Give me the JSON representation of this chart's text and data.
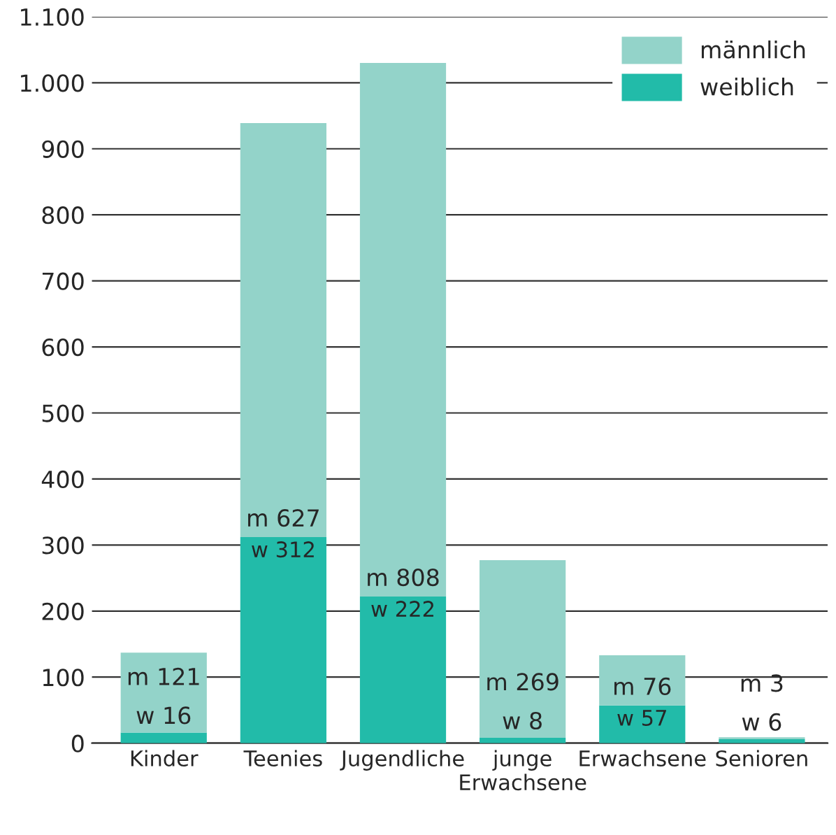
{
  "chart_data": {
    "type": "bar",
    "stacked": true,
    "categories": [
      "Kinder",
      "Teenies",
      "Jugendliche",
      "junge\nErwachsene",
      "Erwachsene",
      "Senioren"
    ],
    "series": [
      {
        "name": "weiblich",
        "color": "#22bba9",
        "values": [
          16,
          312,
          222,
          8,
          57,
          6
        ],
        "value_labels": [
          "w 16",
          "w 312",
          "w 222",
          "w 8",
          "w 57",
          "w 6"
        ]
      },
      {
        "name": "männlich",
        "color": "#93d3c9",
        "values": [
          121,
          627,
          808,
          269,
          76,
          3
        ],
        "value_labels": [
          "m 121",
          "m 627",
          "m 808",
          "m 269",
          "m 76",
          "m 3"
        ]
      }
    ],
    "ylim": [
      0,
      1100
    ],
    "yticks": [
      0,
      100,
      200,
      300,
      400,
      500,
      600,
      700,
      800,
      900,
      {
        "value": 1000,
        "label": "1.000"
      },
      {
        "value": 1100,
        "label": "1.100"
      }
    ],
    "grid": "y",
    "legend": "top right"
  }
}
